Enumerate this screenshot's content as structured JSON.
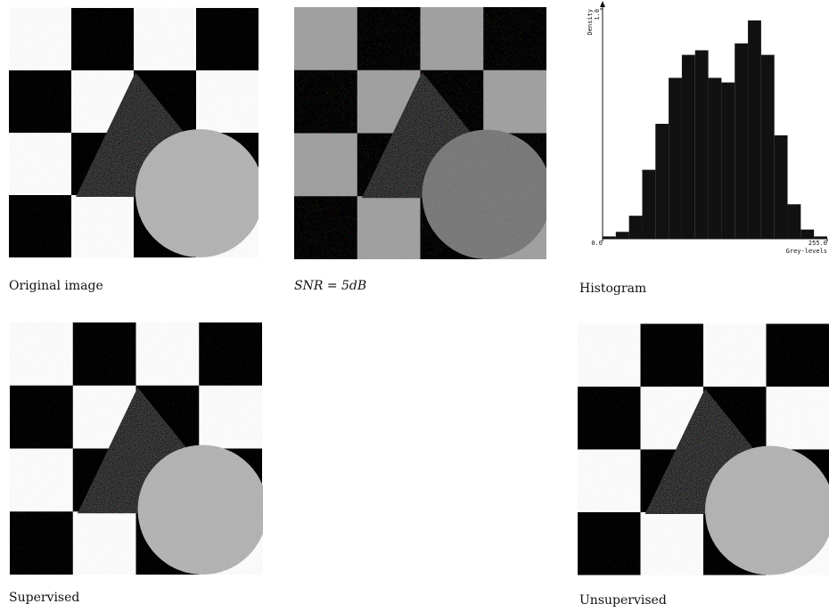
{
  "captions": {
    "original": "Original image",
    "noisy": "SNR = 5dB",
    "histogram": "Histogram",
    "supervised": "Supervised",
    "unsupervised": "Unsupervised"
  },
  "chart_data": {
    "type": "histogram",
    "x_label": "Grey-levels",
    "y_label": "Density",
    "bins": [
      0,
      15,
      30,
      45,
      60,
      75,
      90,
      105,
      120,
      135,
      150,
      165,
      180,
      195,
      210,
      225,
      240,
      255
    ],
    "values": [
      0.01,
      0.03,
      0.1,
      0.3,
      0.5,
      0.7,
      0.8,
      0.82,
      0.7,
      0.68,
      0.85,
      0.95,
      0.8,
      0.45,
      0.15,
      0.04,
      0.01
    ],
    "color": "#111111",
    "xlim": [
      0,
      255
    ],
    "xticks": [
      {
        "value": 0,
        "label": "0.0"
      },
      {
        "value": 255,
        "label": "255.0"
      }
    ],
    "ylim": [
      0,
      1
    ],
    "yticks": [
      {
        "value": 1,
        "label": "1.0"
      }
    ]
  }
}
